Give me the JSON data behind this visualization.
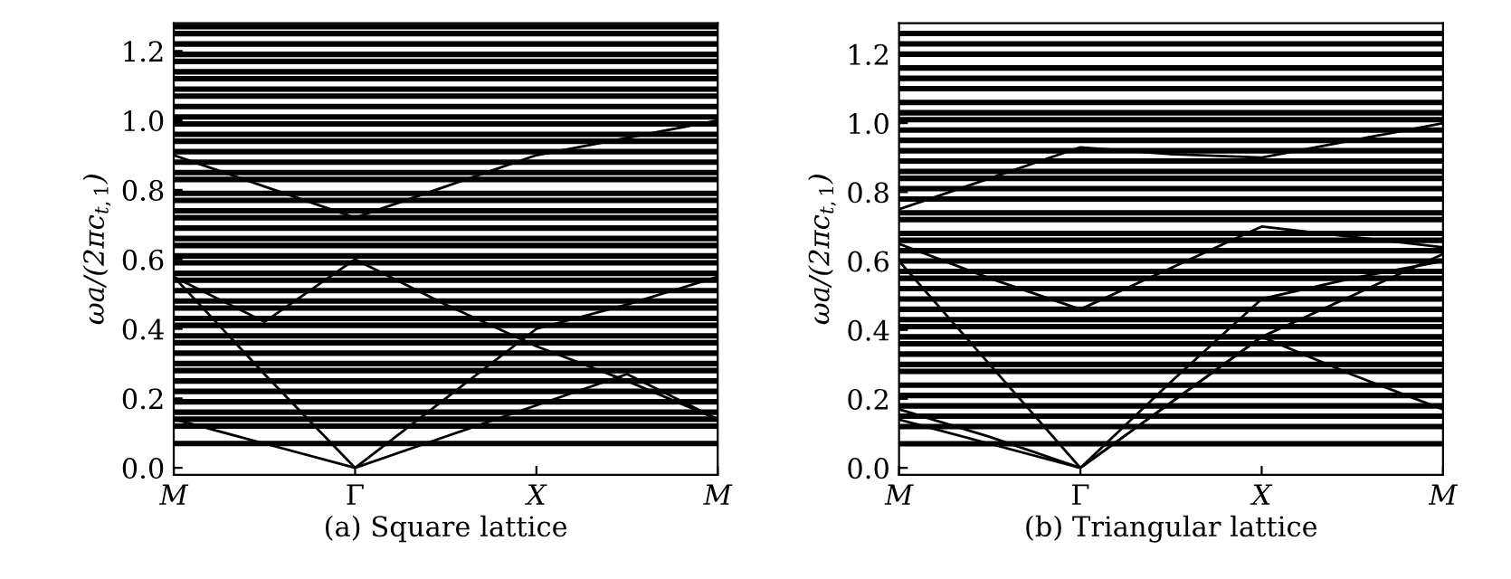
{
  "chart_data": [
    {
      "type": "line",
      "xlabel": "(a) Square lattice",
      "ylabel": "ωa/(2πc$_{t,1}$)",
      "categories": [
        "M",
        null,
        "Γ",
        null,
        "X",
        null,
        "M"
      ],
      "ylim": [
        -0.02,
        1.28
      ],
      "yticks": [
        {
          "value": 0,
          "label": "0.0"
        },
        {
          "value": 0.2,
          "label": "0.2"
        },
        {
          "value": 0.4,
          "label": "0.4"
        },
        {
          "value": 0.6,
          "label": "0.6"
        },
        {
          "value": 0.8,
          "label": "0.8"
        },
        {
          "value": 1.0,
          "label": "1.0"
        },
        {
          "value": 1.2,
          "label": "1.2"
        }
      ],
      "grid": false,
      "series": [
        {
          "color": "#000000",
          "values": [
            0.14,
            0.07,
            0,
            0.09,
            0.18,
            0.27,
            0.14
          ]
        },
        {
          "color": "#000000",
          "values": [
            0.55,
            0.27,
            0,
            0.2,
            0.4,
            0.47,
            0.55
          ]
        },
        {
          "color": "#000000",
          "values": [
            0.55,
            0.42,
            0.6,
            0.47,
            0.35,
            0.25,
            0.14
          ]
        },
        {
          "color": "#000000",
          "values": [
            0.9,
            0.81,
            0.72,
            0.81,
            0.9,
            0.95,
            1.0
          ]
        },
        {
          "color": "#000000",
          "values": [
            0.07,
            0.07,
            0.07,
            0.07,
            0.07,
            0.07,
            0.07
          ]
        },
        {
          "color": "#000000",
          "values": [
            0.12,
            0.12,
            0.12,
            0.12,
            0.12,
            0.12,
            0.12
          ]
        },
        {
          "color": "#000000",
          "values": [
            0.14,
            0.14,
            0.14,
            0.14,
            0.14,
            0.14,
            0.14
          ]
        },
        {
          "color": "#000000",
          "values": [
            0.16,
            0.16,
            0.16,
            0.16,
            0.16,
            0.16,
            0.16
          ]
        },
        {
          "color": "#000000",
          "values": [
            0.19,
            0.19,
            0.19,
            0.19,
            0.19,
            0.19,
            0.19
          ]
        },
        {
          "color": "#000000",
          "values": [
            0.22,
            0.22,
            0.22,
            0.22,
            0.22,
            0.22,
            0.22
          ]
        },
        {
          "color": "#000000",
          "values": [
            0.25,
            0.25,
            0.25,
            0.25,
            0.25,
            0.25,
            0.25
          ]
        },
        {
          "color": "#000000",
          "values": [
            0.28,
            0.28,
            0.28,
            0.28,
            0.28,
            0.28,
            0.28
          ]
        },
        {
          "color": "#000000",
          "values": [
            0.3,
            0.3,
            0.3,
            0.3,
            0.3,
            0.3,
            0.3
          ]
        },
        {
          "color": "#000000",
          "values": [
            0.33,
            0.33,
            0.33,
            0.33,
            0.33,
            0.33,
            0.33
          ]
        },
        {
          "color": "#000000",
          "values": [
            0.36,
            0.36,
            0.36,
            0.36,
            0.36,
            0.36,
            0.36
          ]
        },
        {
          "color": "#000000",
          "values": [
            0.38,
            0.38,
            0.38,
            0.38,
            0.38,
            0.38,
            0.38
          ]
        },
        {
          "color": "#000000",
          "values": [
            0.41,
            0.41,
            0.41,
            0.41,
            0.41,
            0.41,
            0.41
          ]
        },
        {
          "color": "#000000",
          "values": [
            0.43,
            0.43,
            0.43,
            0.43,
            0.43,
            0.43,
            0.43
          ]
        },
        {
          "color": "#000000",
          "values": [
            0.46,
            0.46,
            0.46,
            0.46,
            0.46,
            0.46,
            0.46
          ]
        },
        {
          "color": "#000000",
          "values": [
            0.48,
            0.48,
            0.48,
            0.48,
            0.48,
            0.48,
            0.48
          ]
        },
        {
          "color": "#000000",
          "values": [
            0.51,
            0.51,
            0.51,
            0.51,
            0.51,
            0.51,
            0.51
          ]
        },
        {
          "color": "#000000",
          "values": [
            0.54,
            0.54,
            0.54,
            0.54,
            0.54,
            0.54,
            0.54
          ]
        },
        {
          "color": "#000000",
          "values": [
            0.56,
            0.56,
            0.56,
            0.56,
            0.56,
            0.56,
            0.56
          ]
        },
        {
          "color": "#000000",
          "values": [
            0.59,
            0.59,
            0.59,
            0.59,
            0.59,
            0.59,
            0.59
          ]
        },
        {
          "color": "#000000",
          "values": [
            0.61,
            0.61,
            0.61,
            0.61,
            0.61,
            0.61,
            0.61
          ]
        },
        {
          "color": "#000000",
          "values": [
            0.64,
            0.64,
            0.64,
            0.64,
            0.64,
            0.64,
            0.64
          ]
        },
        {
          "color": "#000000",
          "values": [
            0.66,
            0.66,
            0.66,
            0.66,
            0.66,
            0.66,
            0.66
          ]
        },
        {
          "color": "#000000",
          "values": [
            0.69,
            0.69,
            0.69,
            0.69,
            0.69,
            0.69,
            0.69
          ]
        },
        {
          "color": "#000000",
          "values": [
            0.72,
            0.72,
            0.72,
            0.72,
            0.72,
            0.72,
            0.72
          ]
        },
        {
          "color": "#000000",
          "values": [
            0.74,
            0.74,
            0.74,
            0.74,
            0.74,
            0.74,
            0.74
          ]
        },
        {
          "color": "#000000",
          "values": [
            0.77,
            0.77,
            0.77,
            0.77,
            0.77,
            0.77,
            0.77
          ]
        },
        {
          "color": "#000000",
          "values": [
            0.79,
            0.79,
            0.79,
            0.79,
            0.79,
            0.79,
            0.79
          ]
        },
        {
          "color": "#000000",
          "values": [
            0.83,
            0.83,
            0.83,
            0.83,
            0.83,
            0.83,
            0.83
          ]
        },
        {
          "color": "#000000",
          "values": [
            0.85,
            0.85,
            0.85,
            0.85,
            0.85,
            0.85,
            0.85
          ]
        },
        {
          "color": "#000000",
          "values": [
            0.88,
            0.88,
            0.88,
            0.88,
            0.88,
            0.88,
            0.88
          ]
        },
        {
          "color": "#000000",
          "values": [
            0.91,
            0.91,
            0.91,
            0.91,
            0.91,
            0.91,
            0.91
          ]
        },
        {
          "color": "#000000",
          "values": [
            0.94,
            0.94,
            0.94,
            0.94,
            0.94,
            0.94,
            0.94
          ]
        },
        {
          "color": "#000000",
          "values": [
            0.96,
            0.96,
            0.96,
            0.96,
            0.96,
            0.96,
            0.96
          ]
        },
        {
          "color": "#000000",
          "values": [
            0.99,
            0.99,
            0.99,
            0.99,
            0.99,
            0.99,
            0.99
          ]
        },
        {
          "color": "#000000",
          "values": [
            1.01,
            1.01,
            1.01,
            1.01,
            1.01,
            1.01,
            1.01
          ]
        },
        {
          "color": "#000000",
          "values": [
            1.04,
            1.04,
            1.04,
            1.04,
            1.04,
            1.04,
            1.04
          ]
        },
        {
          "color": "#000000",
          "values": [
            1.07,
            1.07,
            1.07,
            1.07,
            1.07,
            1.07,
            1.07
          ]
        },
        {
          "color": "#000000",
          "values": [
            1.09,
            1.09,
            1.09,
            1.09,
            1.09,
            1.09,
            1.09
          ]
        },
        {
          "color": "#000000",
          "values": [
            1.12,
            1.12,
            1.12,
            1.12,
            1.12,
            1.12,
            1.12
          ]
        },
        {
          "color": "#000000",
          "values": [
            1.14,
            1.14,
            1.14,
            1.14,
            1.14,
            1.14,
            1.14
          ]
        },
        {
          "color": "#000000",
          "values": [
            1.17,
            1.17,
            1.17,
            1.17,
            1.17,
            1.17,
            1.17
          ]
        },
        {
          "color": "#000000",
          "values": [
            1.19,
            1.19,
            1.19,
            1.19,
            1.19,
            1.19,
            1.19
          ]
        },
        {
          "color": "#000000",
          "values": [
            1.22,
            1.22,
            1.22,
            1.22,
            1.22,
            1.22,
            1.22
          ]
        },
        {
          "color": "#000000",
          "values": [
            1.25,
            1.25,
            1.25,
            1.25,
            1.25,
            1.25,
            1.25
          ]
        },
        {
          "color": "#000000",
          "values": [
            1.27,
            1.27,
            1.27,
            1.27,
            1.27,
            1.27,
            1.27
          ]
        }
      ]
    },
    {
      "type": "line",
      "xlabel": "(b) Triangular lattice",
      "ylabel": "ωa/(2πc$_{t,1}$)",
      "categories": [
        "M",
        null,
        "Γ",
        null,
        "X",
        null,
        "M"
      ],
      "ylim": [
        -0.02,
        1.29
      ],
      "yticks": [
        {
          "value": 0,
          "label": "0.0"
        },
        {
          "value": 0.2,
          "label": "0.2"
        },
        {
          "value": 0.4,
          "label": "0.4"
        },
        {
          "value": 0.6,
          "label": "0.6"
        },
        {
          "value": 0.8,
          "label": "0.8"
        },
        {
          "value": 1.0,
          "label": "1.0"
        },
        {
          "value": 1.2,
          "label": "1.2"
        }
      ],
      "grid": false,
      "series": [
        {
          "color": "#000000",
          "values": [
            0.14,
            0.07,
            0,
            0.19,
            0.38,
            0.27,
            0.17
          ]
        },
        {
          "color": "#000000",
          "values": [
            0.17,
            0.09,
            0,
            0.25,
            0.49,
            0.55,
            0.6
          ]
        },
        {
          "color": "#000000",
          "values": [
            0.6,
            0.3,
            0,
            0.19,
            0.38,
            0.5,
            0.62
          ]
        },
        {
          "color": "#000000",
          "values": [
            0.65,
            0.55,
            0.46,
            0.58,
            0.7,
            0.67,
            0.64
          ]
        },
        {
          "color": "#000000",
          "values": [
            0.75,
            0.84,
            0.93,
            0.91,
            0.9,
            0.95,
            1.0
          ]
        },
        {
          "color": "#000000",
          "values": [
            0.07,
            0.07,
            0.07,
            0.07,
            0.07,
            0.07,
            0.07
          ]
        },
        {
          "color": "#000000",
          "values": [
            0.12,
            0.12,
            0.12,
            0.12,
            0.12,
            0.12,
            0.12
          ]
        },
        {
          "color": "#000000",
          "values": [
            0.15,
            0.15,
            0.15,
            0.15,
            0.15,
            0.15,
            0.15
          ]
        },
        {
          "color": "#000000",
          "values": [
            0.18,
            0.18,
            0.18,
            0.18,
            0.18,
            0.18,
            0.18
          ]
        },
        {
          "color": "#000000",
          "values": [
            0.21,
            0.21,
            0.21,
            0.21,
            0.21,
            0.21,
            0.21
          ]
        },
        {
          "color": "#000000",
          "values": [
            0.24,
            0.24,
            0.24,
            0.24,
            0.24,
            0.24,
            0.24
          ]
        },
        {
          "color": "#000000",
          "values": [
            0.28,
            0.28,
            0.28,
            0.28,
            0.28,
            0.28,
            0.28
          ]
        },
        {
          "color": "#000000",
          "values": [
            0.3,
            0.3,
            0.3,
            0.3,
            0.3,
            0.3,
            0.3
          ]
        },
        {
          "color": "#000000",
          "values": [
            0.33,
            0.33,
            0.33,
            0.33,
            0.33,
            0.33,
            0.33
          ]
        },
        {
          "color": "#000000",
          "values": [
            0.36,
            0.36,
            0.36,
            0.36,
            0.36,
            0.36,
            0.36
          ]
        },
        {
          "color": "#000000",
          "values": [
            0.38,
            0.38,
            0.38,
            0.38,
            0.38,
            0.38,
            0.38
          ]
        },
        {
          "color": "#000000",
          "values": [
            0.41,
            0.41,
            0.41,
            0.41,
            0.41,
            0.41,
            0.41
          ]
        },
        {
          "color": "#000000",
          "values": [
            0.43,
            0.43,
            0.43,
            0.43,
            0.43,
            0.43,
            0.43
          ]
        },
        {
          "color": "#000000",
          "values": [
            0.46,
            0.46,
            0.46,
            0.46,
            0.46,
            0.46,
            0.46
          ]
        },
        {
          "color": "#000000",
          "values": [
            0.49,
            0.49,
            0.49,
            0.49,
            0.49,
            0.49,
            0.49
          ]
        },
        {
          "color": "#000000",
          "values": [
            0.52,
            0.52,
            0.52,
            0.52,
            0.52,
            0.52,
            0.52
          ]
        },
        {
          "color": "#000000",
          "values": [
            0.55,
            0.55,
            0.55,
            0.55,
            0.55,
            0.55,
            0.55
          ]
        },
        {
          "color": "#000000",
          "values": [
            0.57,
            0.57,
            0.57,
            0.57,
            0.57,
            0.57,
            0.57
          ]
        },
        {
          "color": "#000000",
          "values": [
            0.6,
            0.6,
            0.6,
            0.6,
            0.6,
            0.6,
            0.6
          ]
        },
        {
          "color": "#000000",
          "values": [
            0.63,
            0.63,
            0.63,
            0.63,
            0.63,
            0.63,
            0.63
          ]
        },
        {
          "color": "#000000",
          "values": [
            0.66,
            0.66,
            0.66,
            0.66,
            0.66,
            0.66,
            0.66
          ]
        },
        {
          "color": "#000000",
          "values": [
            0.68,
            0.68,
            0.68,
            0.68,
            0.68,
            0.68,
            0.68
          ]
        },
        {
          "color": "#000000",
          "values": [
            0.72,
            0.72,
            0.72,
            0.72,
            0.72,
            0.72,
            0.72
          ]
        },
        {
          "color": "#000000",
          "values": [
            0.74,
            0.74,
            0.74,
            0.74,
            0.74,
            0.74,
            0.74
          ]
        },
        {
          "color": "#000000",
          "values": [
            0.78,
            0.78,
            0.78,
            0.78,
            0.78,
            0.78,
            0.78
          ]
        },
        {
          "color": "#000000",
          "values": [
            0.81,
            0.81,
            0.81,
            0.81,
            0.81,
            0.81,
            0.81
          ]
        },
        {
          "color": "#000000",
          "values": [
            0.84,
            0.84,
            0.84,
            0.84,
            0.84,
            0.84,
            0.84
          ]
        },
        {
          "color": "#000000",
          "values": [
            0.86,
            0.86,
            0.86,
            0.86,
            0.86,
            0.86,
            0.86
          ]
        },
        {
          "color": "#000000",
          "values": [
            0.89,
            0.89,
            0.89,
            0.89,
            0.89,
            0.89,
            0.89
          ]
        },
        {
          "color": "#000000",
          "values": [
            0.92,
            0.92,
            0.92,
            0.92,
            0.92,
            0.92,
            0.92
          ]
        },
        {
          "color": "#000000",
          "values": [
            0.95,
            0.95,
            0.95,
            0.95,
            0.95,
            0.95,
            0.95
          ]
        },
        {
          "color": "#000000",
          "values": [
            0.98,
            0.98,
            0.98,
            0.98,
            0.98,
            0.98,
            0.98
          ]
        },
        {
          "color": "#000000",
          "values": [
            1.01,
            1.01,
            1.01,
            1.01,
            1.01,
            1.01,
            1.01
          ]
        },
        {
          "color": "#000000",
          "values": [
            1.03,
            1.03,
            1.03,
            1.03,
            1.03,
            1.03,
            1.03
          ]
        },
        {
          "color": "#000000",
          "values": [
            1.06,
            1.06,
            1.06,
            1.06,
            1.06,
            1.06,
            1.06
          ]
        },
        {
          "color": "#000000",
          "values": [
            1.1,
            1.1,
            1.1,
            1.1,
            1.1,
            1.1,
            1.1
          ]
        },
        {
          "color": "#000000",
          "values": [
            1.13,
            1.13,
            1.13,
            1.13,
            1.13,
            1.13,
            1.13
          ]
        },
        {
          "color": "#000000",
          "values": [
            1.16,
            1.16,
            1.16,
            1.16,
            1.16,
            1.16,
            1.16
          ]
        },
        {
          "color": "#000000",
          "values": [
            1.2,
            1.2,
            1.2,
            1.2,
            1.2,
            1.2,
            1.2
          ]
        },
        {
          "color": "#000000",
          "values": [
            1.23,
            1.23,
            1.23,
            1.23,
            1.23,
            1.23,
            1.23
          ]
        },
        {
          "color": "#000000",
          "values": [
            1.26,
            1.26,
            1.26,
            1.26,
            1.26,
            1.26,
            1.26
          ]
        }
      ]
    }
  ]
}
